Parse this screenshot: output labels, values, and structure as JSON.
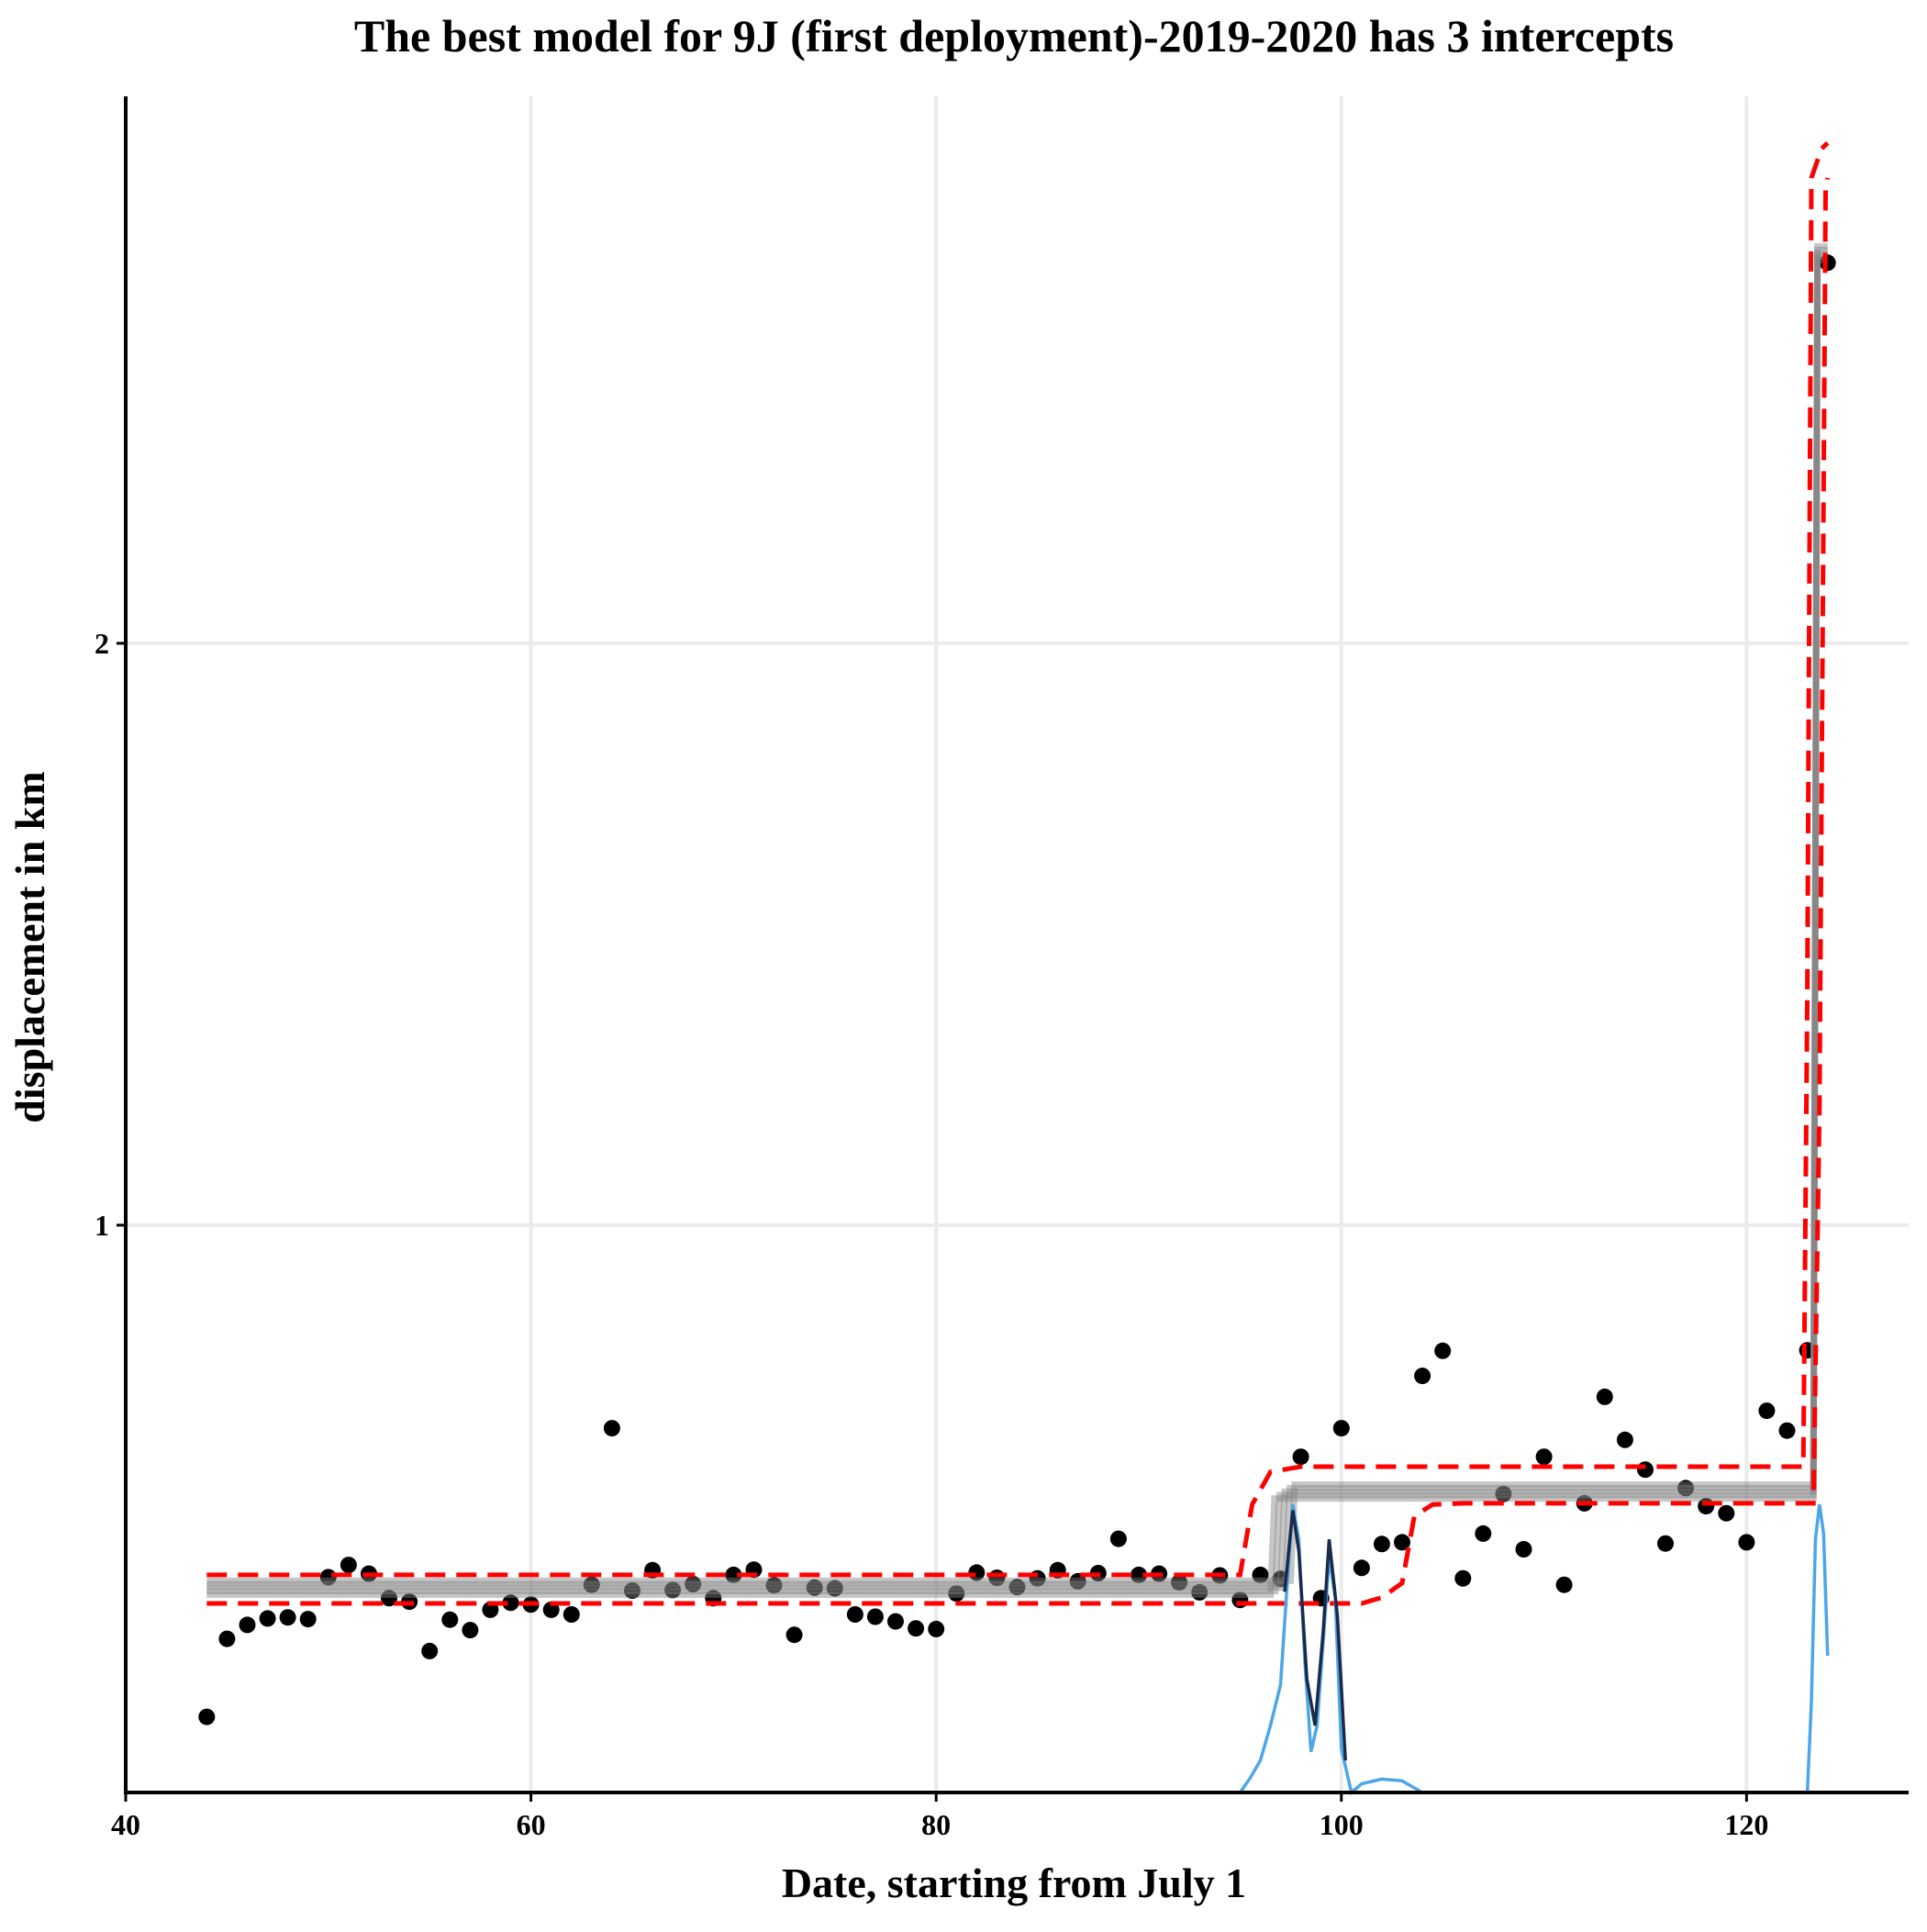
{
  "chart_data": {
    "type": "scatter",
    "title": "The best model for 9J (first deployment)-2019-2020 has 3 intercepts",
    "xlabel": "Date, starting from July 1",
    "ylabel": "displacement in km",
    "xlim": [
      40,
      128
    ],
    "ylim": [
      0.025,
      2.94
    ],
    "grid": true,
    "legend": "none",
    "x_ticks": [
      {
        "value": 40,
        "label": "40"
      },
      {
        "value": 60,
        "label": "60"
      },
      {
        "value": 80,
        "label": "80"
      },
      {
        "value": 100,
        "label": "100"
      },
      {
        "value": 120,
        "label": "120"
      }
    ],
    "y_ticks": [
      {
        "value": 1,
        "label": "1"
      },
      {
        "value": 2,
        "label": "2"
      }
    ],
    "series": [
      {
        "kind": "points",
        "color": "#000000",
        "points": [
          [
            44,
            0.155
          ],
          [
            45,
            0.289
          ],
          [
            46,
            0.313
          ],
          [
            47,
            0.324
          ],
          [
            48,
            0.326
          ],
          [
            49,
            0.323
          ],
          [
            50,
            0.395
          ],
          [
            51,
            0.416
          ],
          [
            52,
            0.401
          ],
          [
            53,
            0.359
          ],
          [
            54,
            0.353
          ],
          [
            55,
            0.268
          ],
          [
            56,
            0.322
          ],
          [
            57,
            0.304
          ],
          [
            58,
            0.339
          ],
          [
            59,
            0.351
          ],
          [
            60,
            0.348
          ],
          [
            61,
            0.339
          ],
          [
            62,
            0.331
          ],
          [
            63,
            0.382
          ],
          [
            64,
            0.651
          ],
          [
            65,
            0.372
          ],
          [
            66,
            0.407
          ],
          [
            67,
            0.373
          ],
          [
            68,
            0.383
          ],
          [
            69,
            0.359
          ],
          [
            70,
            0.399
          ],
          [
            71,
            0.408
          ],
          [
            72,
            0.381
          ],
          [
            73,
            0.296
          ],
          [
            74,
            0.377
          ],
          [
            75,
            0.376
          ],
          [
            76,
            0.331
          ],
          [
            77,
            0.327
          ],
          [
            78,
            0.319
          ],
          [
            79,
            0.307
          ],
          [
            80,
            0.306
          ],
          [
            81,
            0.367
          ],
          [
            82,
            0.403
          ],
          [
            83,
            0.394
          ],
          [
            84,
            0.378
          ],
          [
            85,
            0.393
          ],
          [
            86,
            0.407
          ],
          [
            87,
            0.388
          ],
          [
            88,
            0.402
          ],
          [
            89,
            0.461
          ],
          [
            90,
            0.399
          ],
          [
            91,
            0.401
          ],
          [
            92,
            0.386
          ],
          [
            93,
            0.369
          ],
          [
            94,
            0.398
          ],
          [
            95,
            0.356
          ],
          [
            96,
            0.399
          ],
          [
            97,
            0.392
          ],
          [
            98,
            0.602
          ],
          [
            99,
            0.359
          ],
          [
            100,
            0.651
          ],
          [
            101,
            0.411
          ],
          [
            102,
            0.452
          ],
          [
            103,
            0.455
          ],
          [
            104,
            0.741
          ],
          [
            105,
            0.784
          ],
          [
            106,
            0.393
          ],
          [
            107,
            0.47
          ],
          [
            108,
            0.538
          ],
          [
            109,
            0.443
          ],
          [
            110,
            0.602
          ],
          [
            111,
            0.382
          ],
          [
            112,
            0.522
          ],
          [
            113,
            0.705
          ],
          [
            114,
            0.631
          ],
          [
            115,
            0.58
          ],
          [
            116,
            0.453
          ],
          [
            117,
            0.548
          ],
          [
            118,
            0.517
          ],
          [
            119,
            0.505
          ],
          [
            120,
            0.455
          ],
          [
            121,
            0.681
          ],
          [
            122,
            0.647
          ],
          [
            123,
            0.785
          ],
          [
            124,
            2.654
          ]
        ]
      },
      {
        "kind": "step",
        "name": "",
        "color": "#808080",
        "points": [
          [
            44,
            0.377
          ],
          [
            97,
            0.377
          ],
          [
            97.2,
            0.542
          ],
          [
            123.3,
            0.542
          ],
          [
            123.5,
            2.67
          ],
          [
            124,
            2.67
          ]
        ]
      },
      {
        "kind": "dashed",
        "color": "#ff0000",
        "points": [
          [
            44,
            0.399
          ],
          [
            95,
            0.399
          ],
          [
            95.6,
            0.52
          ],
          [
            96.5,
            0.576
          ],
          [
            98,
            0.585
          ],
          [
            122.8,
            0.585
          ],
          [
            123,
            1.4
          ],
          [
            123.2,
            2.8
          ],
          [
            123.7,
            2.85
          ],
          [
            124,
            2.86
          ]
        ]
      },
      {
        "kind": "dashed",
        "color": "#ff0000",
        "points": [
          [
            44,
            0.35
          ],
          [
            99,
            0.35
          ],
          [
            101,
            0.35
          ],
          [
            102,
            0.36
          ],
          [
            103,
            0.385
          ],
          [
            103.6,
            0.5
          ],
          [
            104.5,
            0.52
          ],
          [
            106,
            0.522
          ],
          [
            123.3,
            0.522
          ],
          [
            123.6,
            1.2
          ],
          [
            123.9,
            2.78
          ],
          [
            124,
            2.8
          ]
        ]
      },
      {
        "kind": "density",
        "color": "#4da6e8",
        "segments": [
          [
            [
              95,
              0.025
            ],
            [
              95.5,
              0.05
            ],
            [
              96,
              0.08
            ],
            [
              96.5,
              0.14
            ],
            [
              97,
              0.21
            ],
            [
              97.3,
              0.37
            ],
            [
              97.6,
              0.52
            ],
            [
              97.9,
              0.46
            ],
            [
              98.2,
              0.25
            ],
            [
              98.5,
              0.095
            ],
            [
              98.8,
              0.14
            ],
            [
              99.2,
              0.33
            ],
            [
              99.4,
              0.43
            ],
            [
              99.7,
              0.36
            ],
            [
              100,
              0.1
            ],
            [
              100.5,
              0.025
            ],
            [
              101,
              0.04
            ],
            [
              102,
              0.048
            ],
            [
              103,
              0.045
            ],
            [
              104,
              0.025
            ]
          ],
          [
            [
              123,
              0.025
            ],
            [
              123.2,
              0.18
            ],
            [
              123.4,
              0.46
            ],
            [
              123.6,
              0.52
            ],
            [
              123.8,
              0.47
            ],
            [
              124,
              0.26
            ]
          ]
        ]
      },
      {
        "kind": "density",
        "color": "#1a2a4a",
        "segments": [
          [
            [
              97.2,
              0.37
            ],
            [
              97.6,
              0.51
            ],
            [
              97.9,
              0.44
            ],
            [
              98.3,
              0.22
            ],
            [
              98.7,
              0.14
            ],
            [
              99.1,
              0.3
            ],
            [
              99.4,
              0.46
            ],
            [
              99.8,
              0.33
            ],
            [
              100.2,
              0.08
            ]
          ]
        ]
      }
    ]
  }
}
